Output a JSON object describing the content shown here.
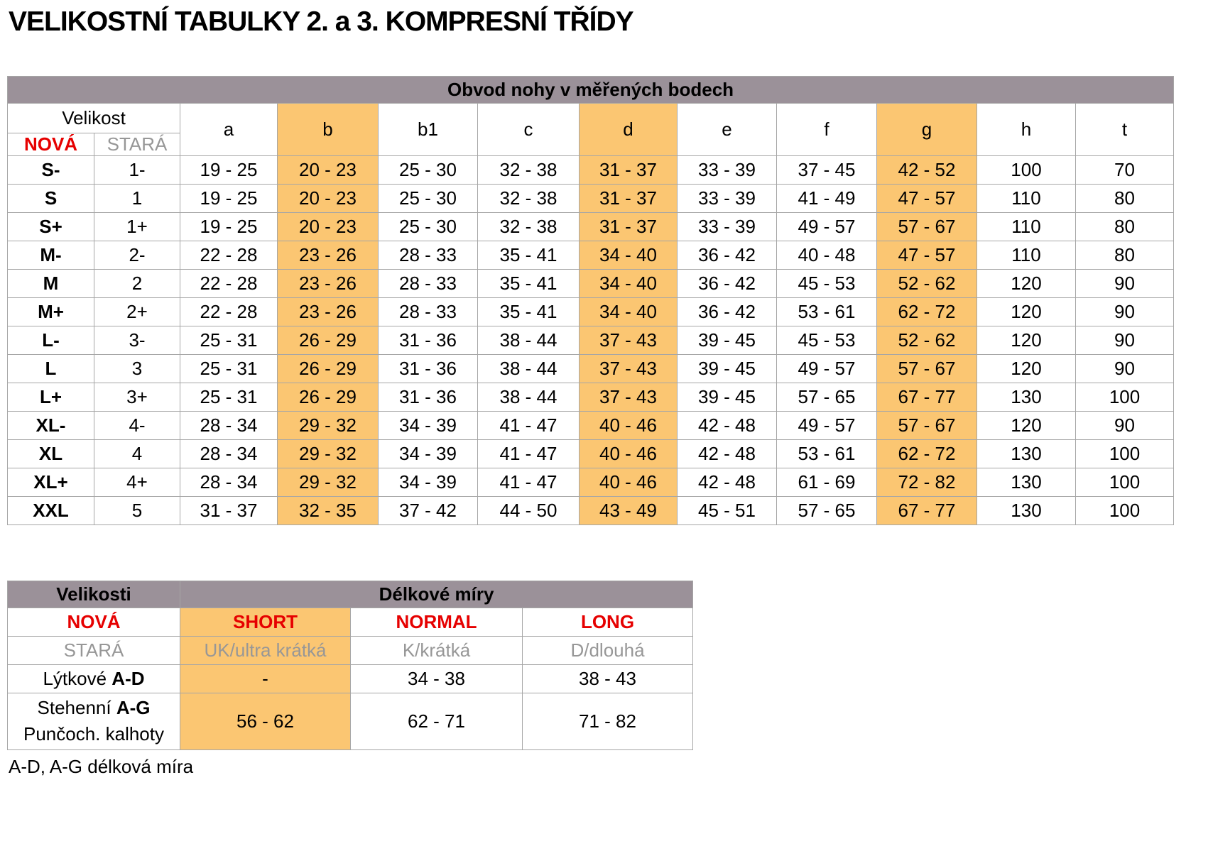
{
  "page_title": "VELIKOSTNÍ TABULKY 2. a 3. KOMPRESNÍ TŘÍDY",
  "colors": {
    "header_bg": "#9B9199",
    "highlight_bg": "#FBC672",
    "accent_red": "#E60000",
    "muted_gray": "#979797"
  },
  "size_table": {
    "caption": "Obvod nohy v měřených bodech",
    "size_header": "Velikost",
    "new_label": "NOVÁ",
    "old_label": "STARÁ",
    "measure_columns": [
      "a",
      "b",
      "b1",
      "c",
      "d",
      "e",
      "f",
      "g",
      "h",
      "t"
    ],
    "highlighted_columns": [
      "b",
      "d",
      "g"
    ],
    "rows": [
      {
        "new": "S-",
        "old": "1-",
        "a": "19 - 25",
        "b": "20 - 23",
        "b1": "25 - 30",
        "c": "32 - 38",
        "d": "31 - 37",
        "e": "33 - 39",
        "f": "37 - 45",
        "g": "42 - 52",
        "h": "100",
        "t": "70"
      },
      {
        "new": "S",
        "old": "1",
        "a": "19 - 25",
        "b": "20 - 23",
        "b1": "25 - 30",
        "c": "32 - 38",
        "d": "31 - 37",
        "e": "33 - 39",
        "f": "41 - 49",
        "g": "47 - 57",
        "h": "110",
        "t": "80"
      },
      {
        "new": "S+",
        "old": "1+",
        "a": "19 - 25",
        "b": "20 - 23",
        "b1": "25 - 30",
        "c": "32 - 38",
        "d": "31 - 37",
        "e": "33 - 39",
        "f": "49 - 57",
        "g": "57 - 67",
        "h": "110",
        "t": "80"
      },
      {
        "new": "M-",
        "old": "2-",
        "a": "22 - 28",
        "b": "23 - 26",
        "b1": "28 - 33",
        "c": "35 - 41",
        "d": "34 - 40",
        "e": "36 - 42",
        "f": "40 - 48",
        "g": "47 - 57",
        "h": "110",
        "t": "80"
      },
      {
        "new": "M",
        "old": "2",
        "a": "22 - 28",
        "b": "23 - 26",
        "b1": "28 - 33",
        "c": "35 - 41",
        "d": "34 - 40",
        "e": "36 - 42",
        "f": "45 - 53",
        "g": "52 - 62",
        "h": "120",
        "t": "90"
      },
      {
        "new": "M+",
        "old": "2+",
        "a": "22 - 28",
        "b": "23 - 26",
        "b1": "28 - 33",
        "c": "35 - 41",
        "d": "34 - 40",
        "e": "36 - 42",
        "f": "53 - 61",
        "g": "62 - 72",
        "h": "120",
        "t": "90"
      },
      {
        "new": "L-",
        "old": "3-",
        "a": "25 - 31",
        "b": "26 - 29",
        "b1": "31 - 36",
        "c": "38 - 44",
        "d": "37 - 43",
        "e": "39 - 45",
        "f": "45 - 53",
        "g": "52 - 62",
        "h": "120",
        "t": "90"
      },
      {
        "new": "L",
        "old": "3",
        "a": "25 - 31",
        "b": "26 - 29",
        "b1": "31 - 36",
        "c": "38 - 44",
        "d": "37 - 43",
        "e": "39 - 45",
        "f": "49 - 57",
        "g": "57 - 67",
        "h": "120",
        "t": "90"
      },
      {
        "new": "L+",
        "old": "3+",
        "a": "25 - 31",
        "b": "26 - 29",
        "b1": "31 - 36",
        "c": "38 - 44",
        "d": "37 - 43",
        "e": "39 - 45",
        "f": "57 - 65",
        "g": "67 - 77",
        "h": "130",
        "t": "100"
      },
      {
        "new": "XL-",
        "old": "4-",
        "a": "28 - 34",
        "b": "29 - 32",
        "b1": "34 - 39",
        "c": "41 - 47",
        "d": "40 - 46",
        "e": "42 - 48",
        "f": "49 - 57",
        "g": "57 - 67",
        "h": "120",
        "t": "90"
      },
      {
        "new": "XL",
        "old": "4",
        "a": "28 - 34",
        "b": "29 - 32",
        "b1": "34 - 39",
        "c": "41 - 47",
        "d": "40 - 46",
        "e": "42 - 48",
        "f": "53 - 61",
        "g": "62 - 72",
        "h": "130",
        "t": "100"
      },
      {
        "new": "XL+",
        "old": "4+",
        "a": "28 - 34",
        "b": "29 - 32",
        "b1": "34 - 39",
        "c": "41 - 47",
        "d": "40 - 46",
        "e": "42 - 48",
        "f": "61 - 69",
        "g": "72 - 82",
        "h": "130",
        "t": "100"
      },
      {
        "new": "XXL",
        "old": "5",
        "a": "31 - 37",
        "b": "32 - 35",
        "b1": "37 - 42",
        "c": "44 - 50",
        "d": "43 - 49",
        "e": "45 - 51",
        "f": "57 - 65",
        "g": "67 - 77",
        "h": "130",
        "t": "100"
      }
    ]
  },
  "length_table": {
    "caption_sizes": "Velikosti",
    "caption_lengths": "Délkové míry",
    "new_row": {
      "label": "NOVÁ",
      "short": "SHORT",
      "normal": "NORMAL",
      "long": "LONG"
    },
    "old_row": {
      "label": "STARÁ",
      "short": "UK/ultra krátká",
      "normal": "K/krátká",
      "long": "D/dlouhá"
    },
    "rows": [
      {
        "label_prefix": "Lýtkové ",
        "label_bold": "A-D",
        "label_line2": "",
        "short": "-",
        "normal": "34 - 38",
        "long": "38 - 43"
      },
      {
        "label_prefix": "Stehenní ",
        "label_bold": "A-G",
        "label_line2": "Punčoch. kalhoty",
        "short": "56 - 62",
        "normal": "62 - 71",
        "long": "71 - 82"
      }
    ]
  },
  "footnote": "A-D, A-G délková míra"
}
